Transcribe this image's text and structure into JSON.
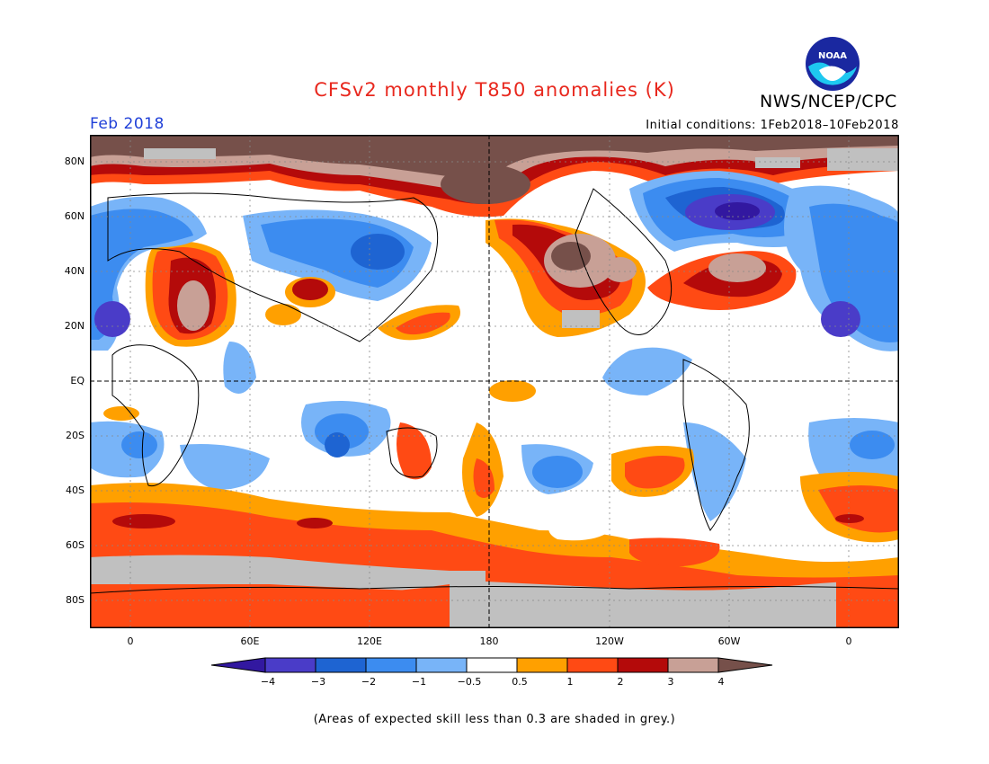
{
  "title": "CFSv2 monthly T850 anomalies (K)",
  "period": "Feb 2018",
  "initial_conditions": "Initial conditions: 1Feb2018–10Feb2018",
  "agency": "NWS/NCEP/CPC",
  "logo_text": "NOAA",
  "footnote": "(Areas of expected skill less than 0.3 are shaded in grey.)",
  "lat_labels": [
    "80N",
    "60N",
    "40N",
    "20N",
    "EQ",
    "20S",
    "40S",
    "60S",
    "80S"
  ],
  "lon_labels": [
    "0",
    "60E",
    "120E",
    "180",
    "120W",
    "60W",
    "0"
  ],
  "colorbar": {
    "labels": [
      "−4",
      "−3",
      "−2",
      "−1",
      "−0.5",
      "0.5",
      "1",
      "2",
      "3",
      "4"
    ],
    "colors": [
      "#3218a0",
      "#4a3cc8",
      "#1e64d2",
      "#3c8cf0",
      "#78b4f8",
      "#ffffff",
      "#ffa000",
      "#ff4a14",
      "#b40a0a",
      "#c8a096",
      "#76504a"
    ]
  },
  "colors": {
    "skill_grey": "#c0c0c0",
    "title_red": "#e8281e",
    "period_blue": "#2040d8"
  }
}
